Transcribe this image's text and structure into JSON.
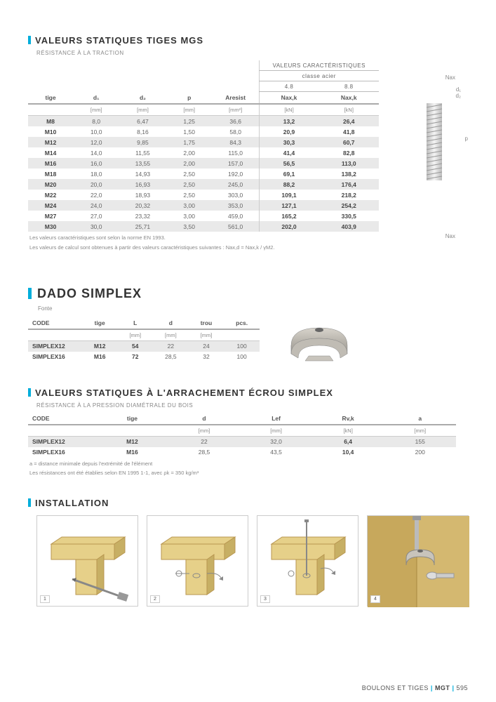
{
  "section1": {
    "title": "VALEURS STATIQUES TIGES MGS",
    "subtitle": "RÉSISTANCE À LA TRACTION",
    "super_header1": "VALEURS CARACTÉRISTIQUES",
    "super_header2": "classe acier",
    "class_a": "4.8",
    "class_b": "8.8",
    "cols": {
      "tige": "tige",
      "d1": "d₁",
      "d2": "d₂",
      "p": "p",
      "aresist": "Aresist",
      "nax_a": "Nax,k",
      "nax_b": "Nax,k"
    },
    "units": {
      "d1": "[mm]",
      "d2": "[mm]",
      "p": "[mm]",
      "aresist": "[mm²]",
      "nax_a": "[kN]",
      "nax_b": "[kN]"
    },
    "rows": [
      {
        "tige": "M8",
        "d1": "8,0",
        "d2": "6,47",
        "p": "1,25",
        "a": "36,6",
        "na": "13,2",
        "nb": "26,4"
      },
      {
        "tige": "M10",
        "d1": "10,0",
        "d2": "8,16",
        "p": "1,50",
        "a": "58,0",
        "na": "20,9",
        "nb": "41,8"
      },
      {
        "tige": "M12",
        "d1": "12,0",
        "d2": "9,85",
        "p": "1,75",
        "a": "84,3",
        "na": "30,3",
        "nb": "60,7"
      },
      {
        "tige": "M14",
        "d1": "14,0",
        "d2": "11,55",
        "p": "2,00",
        "a": "115,0",
        "na": "41,4",
        "nb": "82,8"
      },
      {
        "tige": "M16",
        "d1": "16,0",
        "d2": "13,55",
        "p": "2,00",
        "a": "157,0",
        "na": "56,5",
        "nb": "113,0"
      },
      {
        "tige": "M18",
        "d1": "18,0",
        "d2": "14,93",
        "p": "2,50",
        "a": "192,0",
        "na": "69,1",
        "nb": "138,2"
      },
      {
        "tige": "M20",
        "d1": "20,0",
        "d2": "16,93",
        "p": "2,50",
        "a": "245,0",
        "na": "88,2",
        "nb": "176,4"
      },
      {
        "tige": "M22",
        "d1": "22,0",
        "d2": "18,93",
        "p": "2,50",
        "a": "303,0",
        "na": "109,1",
        "nb": "218,2"
      },
      {
        "tige": "M24",
        "d1": "24,0",
        "d2": "20,32",
        "p": "3,00",
        "a": "353,0",
        "na": "127,1",
        "nb": "254,2"
      },
      {
        "tige": "M27",
        "d1": "27,0",
        "d2": "23,32",
        "p": "3,00",
        "a": "459,0",
        "na": "165,2",
        "nb": "330,5"
      },
      {
        "tige": "M30",
        "d1": "30,0",
        "d2": "25,71",
        "p": "3,50",
        "a": "561,0",
        "na": "202,0",
        "nb": "403,9"
      }
    ],
    "note1": "Les valeurs caractéristiques sont selon la norme EN 1993.",
    "note2": "Les valeurs de calcul sont obtenues à partir des valeurs caractéristiques suivantes : Nax,d = Nax,k / γM2.",
    "diagram": {
      "nax_top": "Nax",
      "d1": "d₁",
      "d2": "d₂",
      "p": "p",
      "nax_bot": "Nax"
    }
  },
  "section2": {
    "title": "DADO SIMPLEX",
    "material": "Fonte",
    "cols": {
      "code": "CODE",
      "tige": "tige",
      "L": "L",
      "d": "d",
      "trou": "trou",
      "pcs": "pcs."
    },
    "units": {
      "L": "[mm]",
      "d": "[mm]",
      "trou": "[mm]"
    },
    "rows": [
      {
        "code": "SIMPLEX12",
        "tige": "M12",
        "L": "54",
        "d": "22",
        "trou": "24",
        "pcs": "100"
      },
      {
        "code": "SIMPLEX16",
        "tige": "M16",
        "L": "72",
        "d": "28,5",
        "trou": "32",
        "pcs": "100"
      }
    ]
  },
  "section3": {
    "title": "VALEURS STATIQUES À L'ARRACHEMENT ÉCROU SIMPLEX",
    "subtitle": "RÉSISTANCE À LA PRESSION DIAMÉTRALE DU BOIS",
    "cols": {
      "code": "CODE",
      "tige": "tige",
      "d": "d",
      "lef": "Lef",
      "rvk": "Rv,k",
      "a": "a"
    },
    "units": {
      "d": "[mm]",
      "lef": "[mm]",
      "rvk": "[kN]",
      "a": "[mm]"
    },
    "rows": [
      {
        "code": "SIMPLEX12",
        "tige": "M12",
        "d": "22",
        "lef": "32,0",
        "rvk": "6,4",
        "a": "155"
      },
      {
        "code": "SIMPLEX16",
        "tige": "M16",
        "d": "28,5",
        "lef": "43,5",
        "rvk": "10,4",
        "a": "200"
      }
    ],
    "note1": "a = distance minimale depuis l'extrémité de l'élément",
    "note2": "Les résistances ont été établies selon EN 1995 1-1, avec ρk = 350 kg/m³"
  },
  "section4": {
    "title": "INSTALLATION",
    "steps": [
      "1",
      "2",
      "3",
      "4"
    ]
  },
  "footer": {
    "cat": "BOULONS ET TIGES",
    "sep": " | ",
    "code": "MGT",
    "sep2": " | ",
    "page": "595"
  },
  "colors": {
    "accent": "#00aedb",
    "row_alt": "#e9e9e9",
    "wood": "#e6d089",
    "wood_dark": "#c7af64",
    "metal": "#b8b5b0"
  }
}
